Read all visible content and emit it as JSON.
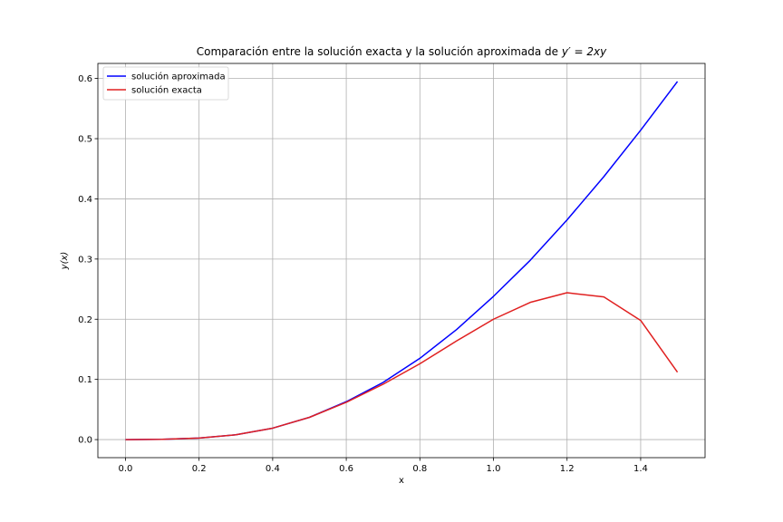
{
  "chart_data": {
    "type": "line",
    "title": "Comparación entre la solución exacta y la solución aproximada de y′ = 2xy",
    "xlabel": "x",
    "ylabel": "y(x)",
    "xlim": [
      -0.075,
      1.575
    ],
    "ylim": [
      -0.03,
      0.625
    ],
    "xticks": [
      0.0,
      0.2,
      0.4,
      0.6,
      0.8,
      1.0,
      1.2,
      1.4
    ],
    "yticks": [
      0.0,
      0.1,
      0.2,
      0.3,
      0.4,
      0.5,
      0.6
    ],
    "grid": true,
    "legend_position": "top-left",
    "x": [
      0.0,
      0.1,
      0.2,
      0.3,
      0.4,
      0.5,
      0.6,
      0.7,
      0.8,
      0.9,
      1.0,
      1.1,
      1.2,
      1.3,
      1.4,
      1.5
    ],
    "series": [
      {
        "name": "solución aproximada",
        "color": "#0000ff",
        "values": [
          0.0,
          0.0005,
          0.0025,
          0.008,
          0.019,
          0.037,
          0.063,
          0.095,
          0.135,
          0.183,
          0.238,
          0.298,
          0.365,
          0.437,
          0.514,
          0.595
        ]
      },
      {
        "name": "solución exacta",
        "color": "#e02020",
        "values": [
          0.0,
          0.0005,
          0.0025,
          0.008,
          0.019,
          0.037,
          0.062,
          0.092,
          0.126,
          0.164,
          0.2,
          0.228,
          0.244,
          0.237,
          0.198,
          0.112
        ]
      }
    ]
  }
}
